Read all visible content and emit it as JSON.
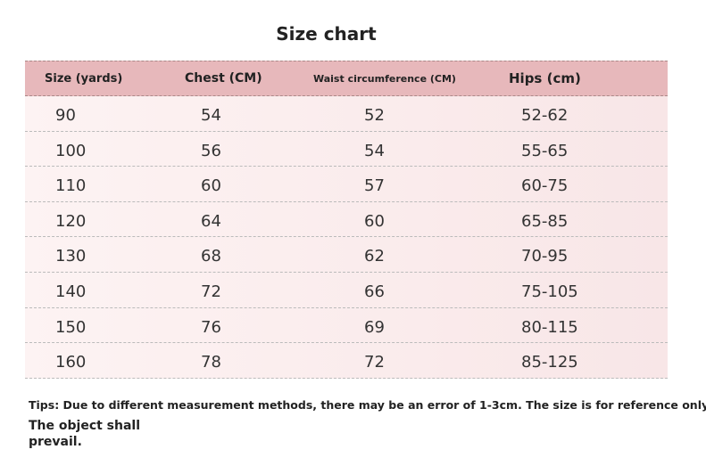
{
  "header": {
    "title": "Size chart"
  },
  "table": {
    "columns": [
      "Size (yards)",
      "Chest (CM)",
      "Waist circumference (CM)",
      "Hips (cm)"
    ],
    "rows": [
      [
        "90",
        "54",
        "52",
        "52-62"
      ],
      [
        "100",
        "56",
        "54",
        "55-65"
      ],
      [
        "110",
        "60",
        "57",
        "60-75"
      ],
      [
        "120",
        "64",
        "60",
        "65-85"
      ],
      [
        "130",
        "68",
        "62",
        "70-95"
      ],
      [
        "140",
        "72",
        "66",
        "75-105"
      ],
      [
        "150",
        "76",
        "69",
        "80-115"
      ],
      [
        "160",
        "78",
        "72",
        "85-125"
      ]
    ]
  },
  "notes": {
    "tips": "Tips: Due to different measurement methods, there may be an error of 1-3cm. The size is for reference only.",
    "prevail": "The object shall prevail."
  }
}
